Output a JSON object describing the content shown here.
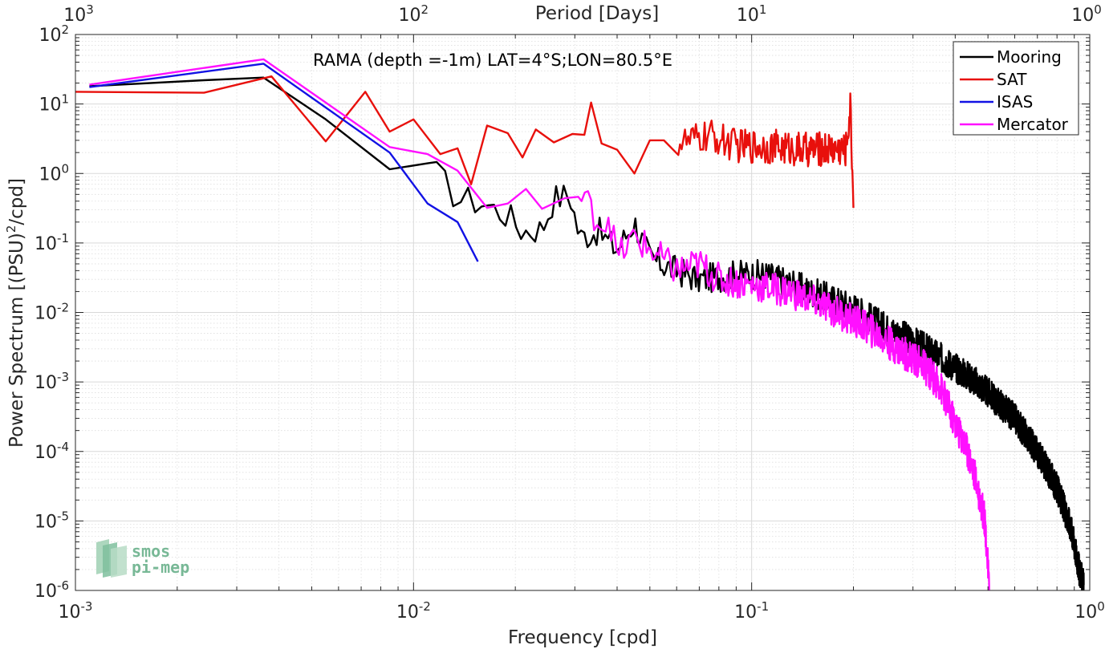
{
  "chart_data": {
    "type": "line",
    "title": "RAMA (depth =-1m) LAT=4°S;LON=80.5°E",
    "xlabel": "Frequency [cpd]",
    "ylabel_prefix": "Power Spectrum [(PSU)",
    "ylabel_sup": "2",
    "ylabel_suffix": "/cpd]",
    "top_xlabel": "Period [Days]",
    "x_scale": "log",
    "y_scale": "log",
    "xlim": [
      0.001,
      1
    ],
    "ylim": [
      1e-06,
      100
    ],
    "grid": true,
    "minor_grid": true,
    "legend_position": "top-right",
    "x_ticks": [
      {
        "base": "10",
        "exp": "-3",
        "value": 0.001
      },
      {
        "base": "10",
        "exp": "-2",
        "value": 0.01
      },
      {
        "base": "10",
        "exp": "-1",
        "value": 0.1
      },
      {
        "base": "10",
        "exp": "0",
        "value": 1
      }
    ],
    "top_ticks": [
      {
        "base": "10",
        "exp": "3",
        "value": 1000
      },
      {
        "base": "10",
        "exp": "2",
        "value": 100
      },
      {
        "base": "10",
        "exp": "1",
        "value": 10
      },
      {
        "base": "10",
        "exp": "0",
        "value": 1
      }
    ],
    "y_ticks": [
      {
        "base": "10",
        "exp": "2",
        "value": 100
      },
      {
        "base": "10",
        "exp": "1",
        "value": 10
      },
      {
        "base": "10",
        "exp": "0",
        "value": 1
      },
      {
        "base": "10",
        "exp": "-1",
        "value": 0.1
      },
      {
        "base": "10",
        "exp": "-2",
        "value": 0.01
      },
      {
        "base": "10",
        "exp": "-3",
        "value": 0.001
      },
      {
        "base": "10",
        "exp": "-4",
        "value": 0.0001
      },
      {
        "base": "10",
        "exp": "-5",
        "value": 1e-05
      },
      {
        "base": "10",
        "exp": "-6",
        "value": 1e-06
      }
    ],
    "series": [
      {
        "name": "Mooring",
        "color": "#000000",
        "noise": {
          "start": 0.011,
          "amp": 0.22
        },
        "points": [
          [
            0.0011,
            18
          ],
          [
            0.0024,
            22
          ],
          [
            0.0036,
            24
          ],
          [
            0.0055,
            6
          ],
          [
            0.0085,
            1.15
          ],
          [
            0.011,
            1.4
          ],
          [
            0.0135,
            0.44
          ],
          [
            0.016,
            0.38
          ],
          [
            0.019,
            0.25
          ],
          [
            0.021,
            0.15
          ],
          [
            0.024,
            0.16
          ],
          [
            0.026,
            0.44
          ],
          [
            0.029,
            0.5
          ],
          [
            0.031,
            0.12
          ],
          [
            0.035,
            0.15
          ],
          [
            0.038,
            0.1
          ],
          [
            0.04,
            0.08
          ],
          [
            0.045,
            0.2
          ],
          [
            0.05,
            0.06
          ],
          [
            0.06,
            0.04
          ],
          [
            0.07,
            0.03
          ],
          [
            0.09,
            0.035
          ],
          [
            0.11,
            0.035
          ],
          [
            0.15,
            0.02
          ],
          [
            0.2,
            0.012
          ],
          [
            0.25,
            0.006
          ],
          [
            0.3,
            0.004
          ],
          [
            0.35,
            0.0025
          ],
          [
            0.45,
            0.0011
          ],
          [
            0.5,
            0.0007
          ],
          [
            0.6,
            0.0003
          ],
          [
            0.7,
            0.0001
          ],
          [
            0.8,
            3e-05
          ],
          [
            0.88,
            8e-06
          ],
          [
            0.93,
            2e-06
          ],
          [
            0.96,
            1.2e-06
          ]
        ]
      },
      {
        "name": "SAT",
        "color": "#e8100c",
        "noise": {
          "start": 0.06,
          "amp": 0.25
        },
        "points": [
          [
            0.001,
            15
          ],
          [
            0.0024,
            14.5
          ],
          [
            0.0038,
            25
          ],
          [
            0.0055,
            2.9
          ],
          [
            0.0072,
            15
          ],
          [
            0.0085,
            4
          ],
          [
            0.01,
            6
          ],
          [
            0.012,
            1.9
          ],
          [
            0.0135,
            2.3
          ],
          [
            0.0148,
            0.7
          ],
          [
            0.0165,
            4.9
          ],
          [
            0.019,
            3.8
          ],
          [
            0.021,
            1.7
          ],
          [
            0.023,
            4.3
          ],
          [
            0.026,
            2.8
          ],
          [
            0.0295,
            3.7
          ],
          [
            0.032,
            3.6
          ],
          [
            0.0335,
            10.5
          ],
          [
            0.036,
            2.7
          ],
          [
            0.04,
            2.2
          ],
          [
            0.045,
            1
          ],
          [
            0.05,
            3
          ],
          [
            0.055,
            3
          ],
          [
            0.065,
            2.8
          ],
          [
            0.075,
            3.5
          ],
          [
            0.09,
            2.5
          ],
          [
            0.11,
            2.5
          ],
          [
            0.14,
            2.2
          ],
          [
            0.17,
            2.3
          ],
          [
            0.19,
            2.2
          ],
          [
            0.196,
            9
          ],
          [
            0.2,
            0.32
          ]
        ]
      },
      {
        "name": "ISAS",
        "color": "#1212e4",
        "noise": null,
        "points": [
          [
            0.0011,
            17.5
          ],
          [
            0.0036,
            38
          ],
          [
            0.0085,
            2
          ],
          [
            0.011,
            0.37
          ],
          [
            0.0135,
            0.2
          ],
          [
            0.0155,
            0.054
          ]
        ]
      },
      {
        "name": "Mercator",
        "color": "#ff10ff",
        "noise": {
          "start": 0.03,
          "amp": 0.24
        },
        "points": [
          [
            0.0011,
            19
          ],
          [
            0.0036,
            44
          ],
          [
            0.0085,
            2.4
          ],
          [
            0.011,
            1.9
          ],
          [
            0.0135,
            1.1
          ],
          [
            0.0165,
            0.32
          ],
          [
            0.019,
            0.37
          ],
          [
            0.0215,
            0.6
          ],
          [
            0.024,
            0.31
          ],
          [
            0.028,
            0.44
          ],
          [
            0.032,
            0.43
          ],
          [
            0.036,
            0.18
          ],
          [
            0.038,
            0.25
          ],
          [
            0.04,
            0.06
          ],
          [
            0.045,
            0.12
          ],
          [
            0.05,
            0.08
          ],
          [
            0.06,
            0.04
          ],
          [
            0.07,
            0.05
          ],
          [
            0.08,
            0.03
          ],
          [
            0.1,
            0.025
          ],
          [
            0.13,
            0.02
          ],
          [
            0.18,
            0.01
          ],
          [
            0.22,
            0.006
          ],
          [
            0.27,
            0.003
          ],
          [
            0.32,
            0.0018
          ],
          [
            0.36,
            0.0009
          ],
          [
            0.4,
            0.00025
          ],
          [
            0.43,
            0.00012
          ],
          [
            0.46,
            4e-05
          ],
          [
            0.49,
            1e-05
          ],
          [
            0.5,
            2e-06
          ],
          [
            0.505,
            8e-07
          ]
        ]
      }
    ]
  },
  "logo": {
    "line1": "smos",
    "line2": "pi-mep"
  }
}
